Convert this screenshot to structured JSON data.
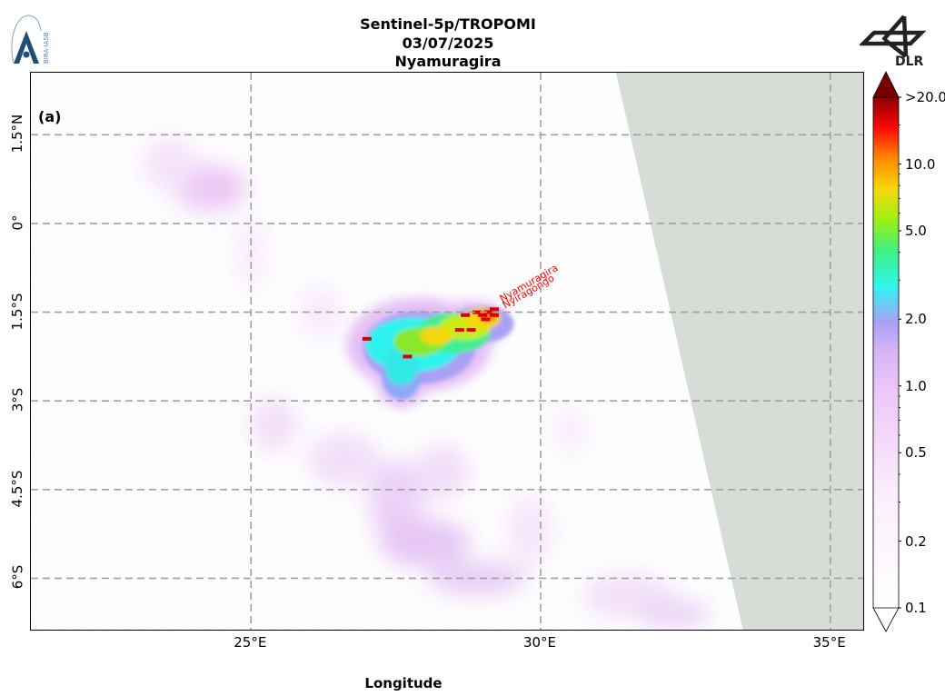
{
  "title": {
    "line1": "Sentinel-5p/TROPOMI",
    "line2": "03/07/2025",
    "line3": "Nyamuragira"
  },
  "panel_label": "(a)",
  "axes": {
    "xlabel": "Longitude",
    "ylabel": "",
    "xlim": [
      21.2,
      35.6
    ],
    "ylim": [
      -6.9,
      2.55
    ],
    "xticks": [
      {
        "value": 25,
        "label": "25°E"
      },
      {
        "value": 30,
        "label": "30°E"
      },
      {
        "value": 35,
        "label": "35°E"
      }
    ],
    "yticks": [
      {
        "value": 1.5,
        "label": "1.5°N"
      },
      {
        "value": 0,
        "label": "0°"
      },
      {
        "value": -1.5,
        "label": "1.5°S"
      },
      {
        "value": -3,
        "label": "3°S"
      },
      {
        "value": -4.5,
        "label": "4.5°S"
      },
      {
        "value": -6,
        "label": "6°S"
      }
    ],
    "grid": "dashed"
  },
  "volcano_labels": [
    {
      "name": "Nyamuragira",
      "lon": 29.2,
      "lat": -1.41,
      "color": "#ff0000"
    },
    {
      "name": "Nyiragongo",
      "lon": 29.25,
      "lat": -1.52,
      "color": "#ff0000"
    }
  ],
  "colorbar": {
    "scale": "log",
    "min": 0.1,
    "max": 20,
    "extend": "both",
    "ticks": [
      {
        "value": 20,
        "label": ">20.0"
      },
      {
        "value": 10,
        "label": "10.0"
      },
      {
        "value": 5,
        "label": "5.0"
      },
      {
        "value": 2,
        "label": "2.0"
      },
      {
        "value": 1,
        "label": "1.0"
      },
      {
        "value": 0.5,
        "label": "0.5"
      },
      {
        "value": 0.2,
        "label": "0.2"
      },
      {
        "value": 0.1,
        "label": "0.1"
      }
    ],
    "colors": [
      "#ffffff",
      "#f6e6fa",
      "#e6b8f5",
      "#a89cf5",
      "#2ff5f0",
      "#7ff01a",
      "#f5e00a",
      "#ff8000",
      "#ff0000",
      "#7a0000"
    ]
  },
  "no_data_color": "#d6dcd6",
  "swath_edge": [
    {
      "lon": 31.3,
      "lat": 2.55
    },
    {
      "lon": 33.5,
      "lat": -6.9
    }
  ],
  "chart_data": {
    "type": "heatmap",
    "title": "Sentinel-5p/TROPOMI 03/07/2025 Nyamuragira",
    "xlabel": "Longitude",
    "ylabel": "",
    "xlim": [
      21.2,
      35.6
    ],
    "ylim": [
      -6.9,
      2.55
    ],
    "value_range": [
      0.1,
      20
    ],
    "plume_core": [
      {
        "lon": 29.2,
        "lat": -1.45,
        "value": 20
      },
      {
        "lon": 29.0,
        "lat": -1.55,
        "value": 15
      },
      {
        "lon": 28.7,
        "lat": -1.7,
        "value": 10
      },
      {
        "lon": 28.4,
        "lat": -1.8,
        "value": 4
      },
      {
        "lon": 27.8,
        "lat": -2.0,
        "value": 3.5
      },
      {
        "lon": 27.3,
        "lat": -1.9,
        "value": 2
      },
      {
        "lon": 27.7,
        "lat": -2.5,
        "value": 2
      },
      {
        "lon": 27.5,
        "lat": -2.8,
        "value": 1.5
      }
    ],
    "diffuse_regions": [
      {
        "lon": 24.3,
        "lat": 0.6,
        "value": 0.8
      },
      {
        "lon": 27.8,
        "lat": -5.6,
        "value": 1.2
      },
      {
        "lon": 28.5,
        "lat": -6.0,
        "value": 0.7
      },
      {
        "lon": 28.0,
        "lat": -4.3,
        "value": 0.5
      }
    ]
  },
  "logos": {
    "left": "BIRA-IASB",
    "right": "DLR"
  }
}
